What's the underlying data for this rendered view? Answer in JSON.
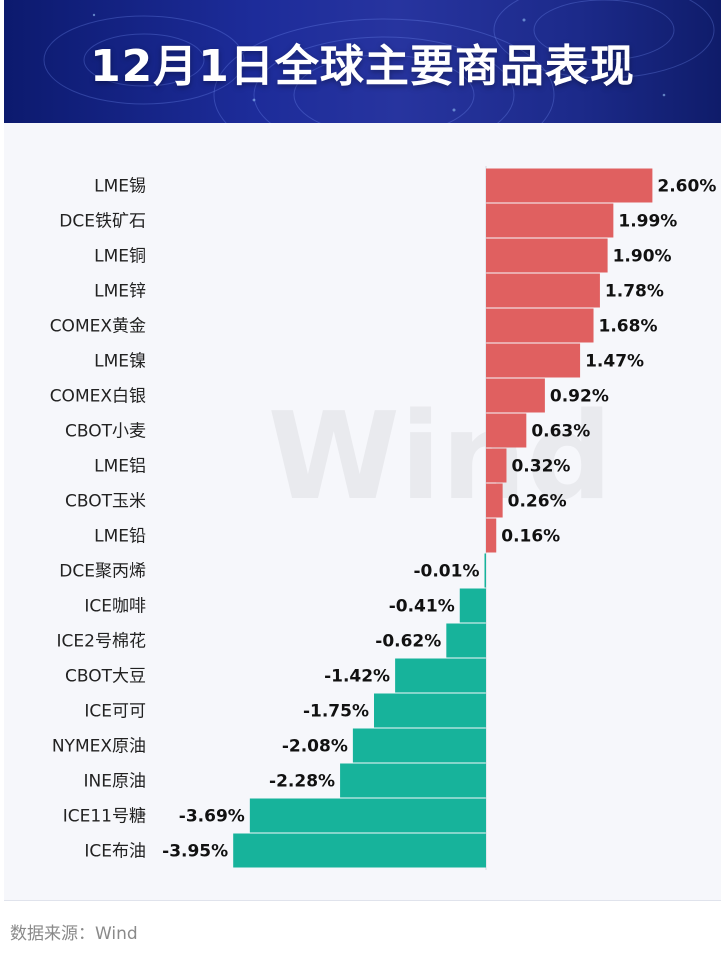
{
  "header": {
    "title": "12月1日全球主要商品表现"
  },
  "watermark": "Wind",
  "source": "数据来源：Wind",
  "colors": {
    "positive": "#e06060",
    "negative": "#17b39b",
    "header_bg": "#1d2c9a"
  },
  "chart_data": {
    "type": "bar",
    "orientation": "horizontal",
    "title": "12月1日全球主要商品表现",
    "unit": "%",
    "categories": [
      "LME锡",
      "DCE铁矿石",
      "LME铜",
      "LME锌",
      "COMEX黄金",
      "LME镍",
      "COMEX白银",
      "CBOT小麦",
      "LME铝",
      "CBOT玉米",
      "LME铅",
      "DCE聚丙烯",
      "ICE咖啡",
      "ICE2号棉花",
      "CBOT大豆",
      "ICE可可",
      "NYMEX原油",
      "INE原油",
      "ICE11号糖",
      "ICE布油"
    ],
    "values": [
      2.6,
      1.99,
      1.9,
      1.78,
      1.68,
      1.47,
      0.92,
      0.63,
      0.32,
      0.26,
      0.16,
      -0.01,
      -0.41,
      -0.62,
      -1.42,
      -1.75,
      -2.08,
      -2.28,
      -3.69,
      -3.95
    ],
    "labels": [
      "2.60%",
      "1.99%",
      "1.90%",
      "1.78%",
      "1.68%",
      "1.47%",
      "0.92%",
      "0.63%",
      "0.32%",
      "0.26%",
      "0.16%",
      "-0.01%",
      "-0.41%",
      "-0.62%",
      "-1.42%",
      "-1.75%",
      "-2.08%",
      "-2.28%",
      "-3.69%",
      "-3.95%"
    ],
    "xlim": [
      -3.95,
      2.6
    ]
  }
}
